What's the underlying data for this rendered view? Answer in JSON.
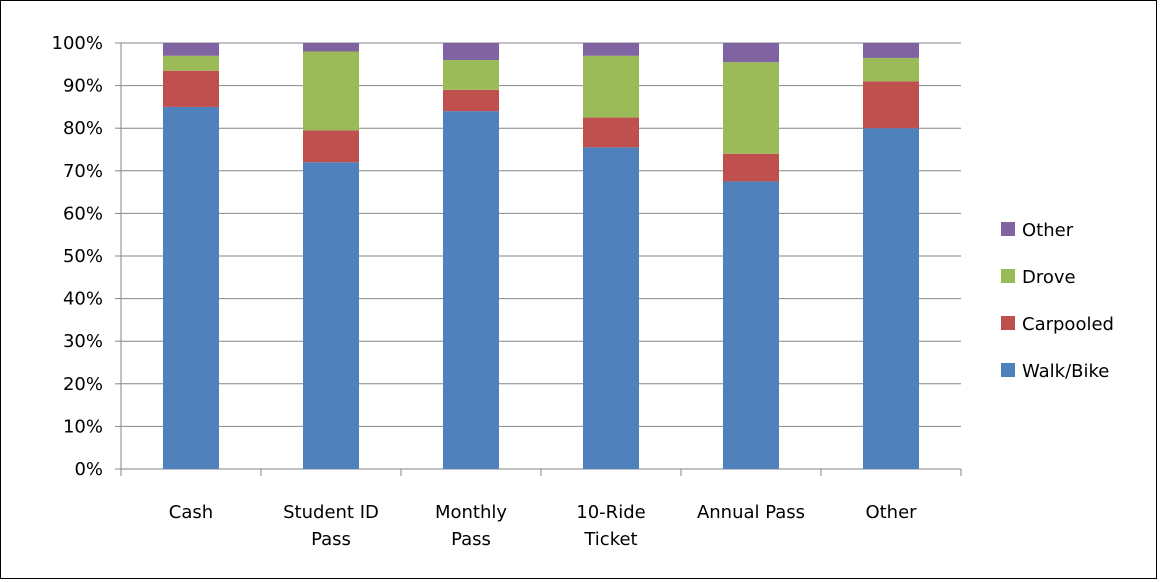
{
  "chart_data": {
    "type": "bar",
    "stacked": true,
    "categories": [
      [
        "Cash"
      ],
      [
        "Student ID",
        "Pass"
      ],
      [
        "Monthly",
        "Pass"
      ],
      [
        "10-Ride",
        "Ticket"
      ],
      [
        "Annual Pass"
      ],
      [
        "Other"
      ]
    ],
    "series": [
      {
        "name": "Walk/Bike",
        "color": "#4F81BD",
        "values": [
          85.0,
          72.0,
          84.0,
          75.5,
          67.5,
          80.0
        ]
      },
      {
        "name": "Carpooled",
        "color": "#C0504D",
        "values": [
          8.5,
          7.5,
          5.0,
          7.0,
          6.5,
          11.0
        ]
      },
      {
        "name": "Drove",
        "color": "#9BBB59",
        "values": [
          3.5,
          18.5,
          7.0,
          14.5,
          21.5,
          5.5
        ]
      },
      {
        "name": "Other",
        "color": "#8064A2",
        "values": [
          3.0,
          2.0,
          4.0,
          3.0,
          4.5,
          3.5
        ]
      }
    ],
    "y_ticks": [
      "0%",
      "10%",
      "20%",
      "30%",
      "40%",
      "50%",
      "60%",
      "70%",
      "80%",
      "90%",
      "100%"
    ],
    "ylim": [
      0,
      100
    ],
    "title": "",
    "xlabel": "",
    "ylabel": "",
    "grid": true,
    "legend_position": "right",
    "legend_order": [
      "Other",
      "Drove",
      "Carpooled",
      "Walk/Bike"
    ]
  }
}
